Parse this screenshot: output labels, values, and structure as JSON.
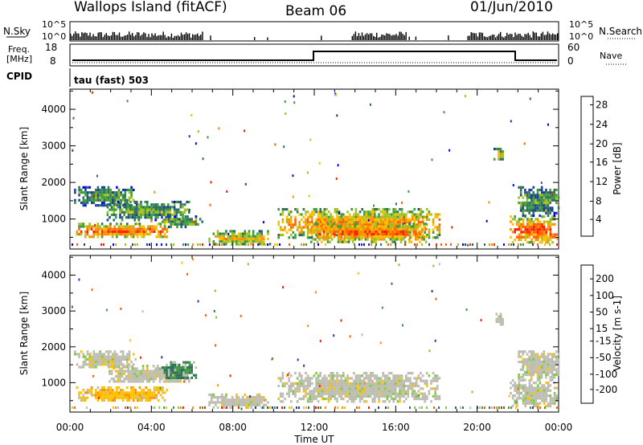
{
  "header": {
    "station": "Wallops Island (fitACF)",
    "beam": "Beam 06",
    "date": "01/Jun/2010"
  },
  "strip": {
    "nsky_label": "N.Sky",
    "nsearch_label": "N.Search",
    "nsky_ticks": [
      "10^5",
      "10^0"
    ],
    "nsky_right_ticks": [
      "10^5",
      "10^0"
    ],
    "freq_label_line1": "Freq.",
    "freq_label_line2": "[MHz]",
    "freq_ticks": [
      "18",
      "8"
    ],
    "nave_label": "Nave",
    "nave_ticks": [
      "60",
      "0"
    ],
    "cpid_label": "CPID",
    "cpid_value": "tau (fast) 503"
  },
  "colors": {
    "power": [
      "#0000ff",
      "#1e3f96",
      "#2e6e5e",
      "#3c9b3c",
      "#a0c020",
      "#f5c000",
      "#ff9000",
      "#ff6000",
      "#ff2000"
    ],
    "velocity": [
      "#1f3f9f",
      "#2e6e5e",
      "#3c9b3c",
      "#80c840",
      "#bcbcb0",
      "#ffc000",
      "#ff9000",
      "#ff6000",
      "#ff2000"
    ]
  },
  "chart_data": [
    {
      "type": "heatmap",
      "panel": "power",
      "ylabel": "Slant Range [km]",
      "ylim": [
        180,
        4550
      ],
      "y_ticks": [
        "4000",
        "3000",
        "2000",
        "1000"
      ],
      "colorbar_label": "Power [dB]",
      "colorbar_ticks": [
        "28",
        "24",
        "20",
        "16",
        "12",
        "8",
        "4"
      ],
      "colorbar_range": [
        0,
        30
      ],
      "regions": [
        {
          "t0": 0.2,
          "t1": 3.2,
          "r0": 1400,
          "r1": 1900,
          "level": 0.35
        },
        {
          "t0": 1.8,
          "t1": 5.9,
          "r0": 1000,
          "r1": 1500,
          "level": 0.4
        },
        {
          "t0": 0.3,
          "t1": 4.8,
          "r0": 500,
          "r1": 900,
          "level": 0.85
        },
        {
          "t0": 4.5,
          "t1": 6.5,
          "r0": 800,
          "r1": 1100,
          "level": 0.4
        },
        {
          "t0": 6.8,
          "t1": 9.8,
          "r0": 300,
          "r1": 700,
          "level": 0.6
        },
        {
          "t0": 10.2,
          "t1": 18.2,
          "r0": 500,
          "r1": 1300,
          "level": 0.7
        },
        {
          "t0": 11.8,
          "t1": 17.5,
          "r0": 400,
          "r1": 900,
          "level": 0.85
        },
        {
          "t0": 21.6,
          "t1": 23.9,
          "r0": 350,
          "r1": 1100,
          "level": 0.9
        },
        {
          "t0": 22.0,
          "t1": 24.0,
          "r0": 1100,
          "r1": 1900,
          "level": 0.35
        },
        {
          "t0": 20.8,
          "t1": 21.3,
          "r0": 2650,
          "r1": 2950,
          "level": 0.6
        }
      ]
    },
    {
      "type": "heatmap",
      "panel": "velocity",
      "xlabel": "Time UT",
      "ylabel": "Slant Range [km]",
      "x_ticks": [
        "00:00",
        "04:00",
        "08:00",
        "12:00",
        "16:00",
        "20:00",
        "00:00"
      ],
      "xlim": [
        0,
        24
      ],
      "ylim": [
        180,
        4550
      ],
      "y_ticks": [
        "4000",
        "3000",
        "2000",
        "1000"
      ],
      "colorbar_label": "Velocity [m s-1]",
      "colorbar_ticks": [
        "200",
        "100",
        "50",
        "15",
        "-15",
        "-50",
        "-100",
        "-200"
      ],
      "colorbar_range": [
        -200,
        200
      ],
      "regions": [
        {
          "t0": 0.2,
          "t1": 3.2,
          "r0": 1400,
          "r1": 1900,
          "level": 0.5
        },
        {
          "t0": 1.8,
          "t1": 5.9,
          "r0": 1000,
          "r1": 1500,
          "level": 0.5
        },
        {
          "t0": 0.3,
          "t1": 4.8,
          "r0": 500,
          "r1": 900,
          "level": 0.3
        },
        {
          "t0": 4.5,
          "t1": 6.2,
          "r0": 1100,
          "r1": 1600,
          "level": 0.8
        },
        {
          "t0": 6.8,
          "t1": 9.8,
          "r0": 300,
          "r1": 700,
          "level": 0.5
        },
        {
          "t0": 10.2,
          "t1": 18.2,
          "r0": 500,
          "r1": 1300,
          "level": 0.5
        },
        {
          "t0": 21.6,
          "t1": 23.9,
          "r0": 350,
          "r1": 1100,
          "level": 0.5
        },
        {
          "t0": 22.0,
          "t1": 24.0,
          "r0": 1100,
          "r1": 1900,
          "level": 0.5
        },
        {
          "t0": 20.8,
          "t1": 21.3,
          "r0": 2650,
          "r1": 2950,
          "level": 0.5
        }
      ]
    }
  ]
}
